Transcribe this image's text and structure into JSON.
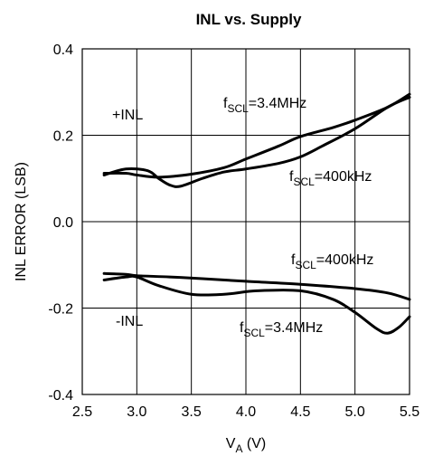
{
  "chart_data": {
    "type": "line",
    "title": "INL vs. Supply",
    "xlabel": {
      "main": "V",
      "sub": "A",
      "unit": " (V)"
    },
    "ylabel": "INL ERROR (LSB)",
    "xlim": [
      2.5,
      5.5
    ],
    "ylim": [
      -0.4,
      0.4
    ],
    "xticks": [
      "2.5",
      "3.0",
      "3.5",
      "4.0",
      "4.5",
      "5.0",
      "5.5"
    ],
    "yticks": [
      "0.4",
      "0.2",
      "0.0",
      "-0.2",
      "-0.4"
    ],
    "grid": true,
    "annotations": {
      "plus_inl": "+INL",
      "minus_inl": "-INL",
      "plus_34": {
        "main": "f",
        "sub": "SCL",
        "rest": "=3.4MHz"
      },
      "plus_400": {
        "main": "f",
        "sub": "SCL",
        "rest": "=400kHz"
      },
      "minus_400": {
        "main": "f",
        "sub": "SCL",
        "rest": "=400kHz"
      },
      "minus_34": {
        "main": "f",
        "sub": "SCL",
        "rest": "=3.4MHz"
      }
    },
    "series": [
      {
        "label": "+INL f_SCL=3.4MHz",
        "x": [
          2.7,
          2.9,
          3.0,
          3.2,
          3.5,
          3.8,
          4.0,
          4.3,
          4.5,
          4.8,
          5.0,
          5.3,
          5.5
        ],
        "y": [
          0.112,
          0.112,
          0.108,
          0.103,
          0.11,
          0.125,
          0.145,
          0.175,
          0.197,
          0.218,
          0.235,
          0.265,
          0.295
        ]
      },
      {
        "label": "+INL f_SCL=400kHz",
        "x": [
          2.7,
          2.9,
          3.1,
          3.2,
          3.3,
          3.4,
          3.6,
          3.8,
          4.0,
          4.3,
          4.5,
          4.7,
          5.0,
          5.3,
          5.5
        ],
        "y": [
          0.108,
          0.122,
          0.118,
          0.1,
          0.085,
          0.082,
          0.1,
          0.115,
          0.122,
          0.135,
          0.15,
          0.175,
          0.215,
          0.265,
          0.288
        ]
      },
      {
        "label": "-INL f_SCL=400kHz",
        "x": [
          2.7,
          2.9,
          3.0,
          3.3,
          3.6,
          4.0,
          4.5,
          5.0,
          5.3,
          5.5
        ],
        "y": [
          -0.12,
          -0.122,
          -0.125,
          -0.128,
          -0.132,
          -0.138,
          -0.145,
          -0.155,
          -0.165,
          -0.18
        ]
      },
      {
        "label": "-INL f_SCL=3.4MHz",
        "x": [
          2.7,
          2.9,
          3.0,
          3.2,
          3.5,
          3.8,
          4.1,
          4.5,
          4.8,
          5.0,
          5.2,
          5.3,
          5.4,
          5.5
        ],
        "y": [
          -0.135,
          -0.128,
          -0.128,
          -0.148,
          -0.168,
          -0.168,
          -0.16,
          -0.16,
          -0.18,
          -0.21,
          -0.248,
          -0.258,
          -0.245,
          -0.22
        ]
      }
    ]
  }
}
